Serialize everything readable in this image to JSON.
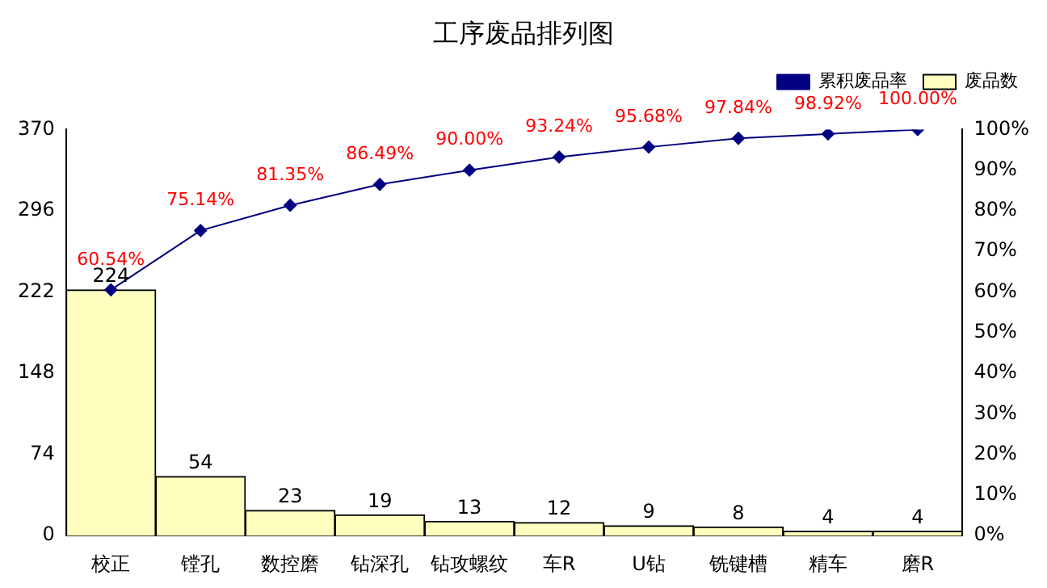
{
  "chart_data": {
    "type": "bar",
    "title": "工序废品排列图",
    "categories": [
      "校正",
      "镗孔",
      "数控磨",
      "钻深孔",
      "钻攻螺纹",
      "车R",
      "U钻",
      "铣键槽",
      "精车",
      "磨R"
    ],
    "series": [
      {
        "name": "废品数",
        "color": "#ffffc0",
        "values": [
          224,
          54,
          23,
          19,
          13,
          12,
          9,
          8,
          4,
          4
        ],
        "value_labels": [
          "224",
          "54",
          "23",
          "19",
          "13",
          "12",
          "9",
          "8",
          "4",
          "4"
        ]
      },
      {
        "name": "累积废品率",
        "type": "line",
        "axis": "y2",
        "color": "#000080",
        "values": [
          60.54,
          75.14,
          81.35,
          86.49,
          90.0,
          93.24,
          95.68,
          97.84,
          98.92,
          100.0
        ],
        "value_labels": [
          "60.54%",
          "75.14%",
          "81.35%",
          "86.49%",
          "90.00%",
          "93.24%",
          "95.68%",
          "97.84%",
          "98.92%",
          "100.00%"
        ]
      }
    ],
    "ylim": [
      0,
      370
    ],
    "yticks": [
      0,
      74,
      148,
      222,
      296,
      370
    ],
    "y2lim": [
      0,
      100
    ],
    "y2ticks": [
      {
        "value": 0,
        "label": "0%"
      },
      {
        "value": 10,
        "label": "10%"
      },
      {
        "value": 20,
        "label": "20%"
      },
      {
        "value": 30,
        "label": "30%"
      },
      {
        "value": 40,
        "label": "40%"
      },
      {
        "value": 50,
        "label": "50%"
      },
      {
        "value": 60,
        "label": "60%"
      },
      {
        "value": 70,
        "label": "70%"
      },
      {
        "value": 80,
        "label": "80%"
      },
      {
        "value": 90,
        "label": "90%"
      },
      {
        "value": 100,
        "label": "100%"
      }
    ],
    "marker": "diamond",
    "legend": "top right",
    "grid": false
  }
}
